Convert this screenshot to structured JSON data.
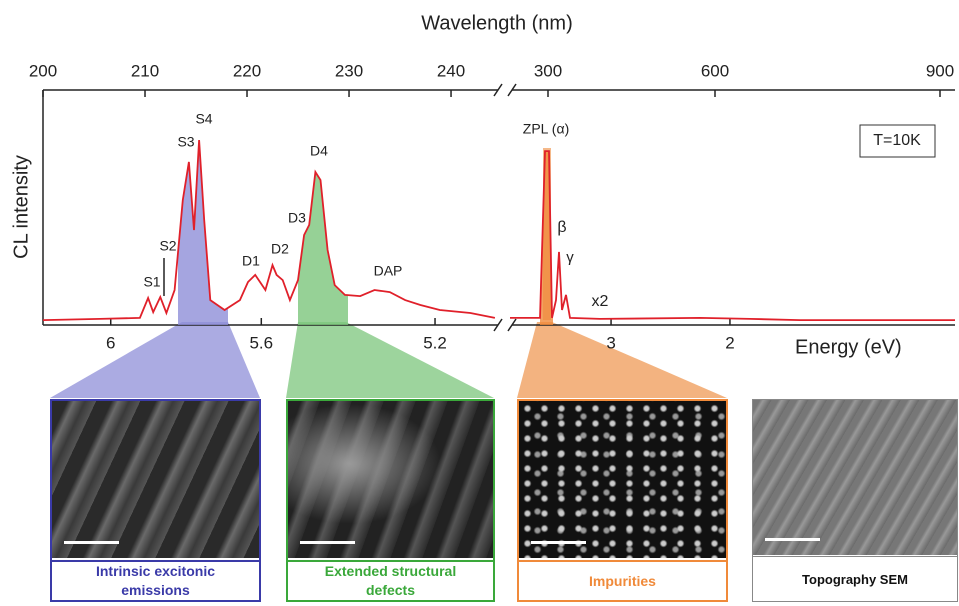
{
  "chart_data": [
    {
      "type": "line",
      "xlabel": "Wavelength (nm)",
      "ylabel": "CL intensity",
      "xlim": [
        200,
        244.8
      ],
      "xticks": [
        200,
        210,
        220,
        230,
        240
      ],
      "x2ticks": [
        6,
        5.6,
        5.2
      ],
      "ylim": [
        0,
        100
      ],
      "color": "#e0202a",
      "x": [
        200,
        205.6,
        209.5,
        210.3,
        210.8,
        211.5,
        212.1,
        212.9,
        213.7,
        214.3,
        214.8,
        215.3,
        215.8,
        216.4,
        217.8,
        219.3,
        220.1,
        220.8,
        221.8,
        222.5,
        222.9,
        223.5,
        224.2,
        225.0,
        225.6,
        226.1,
        226.7,
        227.2,
        227.9,
        228.6,
        229.6,
        231.1,
        232.5,
        234.0,
        235.5,
        237.0,
        238.9,
        241.9,
        244.3
      ],
      "values": [
        2.1,
        2.6,
        3,
        11.5,
        5.5,
        11.9,
        5.1,
        14.9,
        53.2,
        69.4,
        40.4,
        78.7,
        44.7,
        10.6,
        6.4,
        10.6,
        18.3,
        21.3,
        14.9,
        25.5,
        21.3,
        19.1,
        10.6,
        19.1,
        38.3,
        42.6,
        65.1,
        61.7,
        31.9,
        17,
        12.8,
        12.3,
        14.9,
        14,
        10.6,
        8.5,
        6.4,
        5.1,
        3
      ],
      "annotations": [
        "S1",
        "S2",
        "S3",
        "S4",
        "D1",
        "D2",
        "D3",
        "D4",
        "DAP"
      ]
    },
    {
      "type": "line",
      "xlabel2": "Energy (eV)",
      "xlim": [
        231.7,
        920
      ],
      "xticks": [
        300,
        600,
        900
      ],
      "x2ticks": [
        3,
        2
      ],
      "ylim": [
        0,
        100
      ],
      "color": "#e0202a",
      "x": [
        231.7,
        285.6,
        294.6,
        301.8,
        307.2,
        314.4,
        319.8,
        325.1,
        332.3,
        339.5,
        393.4,
        573,
        646.7,
        713.3,
        920
      ],
      "values": [
        3,
        3,
        74,
        74,
        3,
        10.6,
        31.1,
        6.4,
        12.8,
        3,
        2.6,
        3,
        2.6,
        2.1,
        2.1
      ],
      "annotations": [
        "ZPL (α)",
        "β",
        "γ",
        "x2",
        "T=10K"
      ]
    }
  ],
  "panels": [
    {
      "caption": "Intrinsic excitonic emissions"
    },
    {
      "caption": "Extended structural defects"
    },
    {
      "caption": "Impurities"
    },
    {
      "caption": "Topography SEM"
    }
  ]
}
